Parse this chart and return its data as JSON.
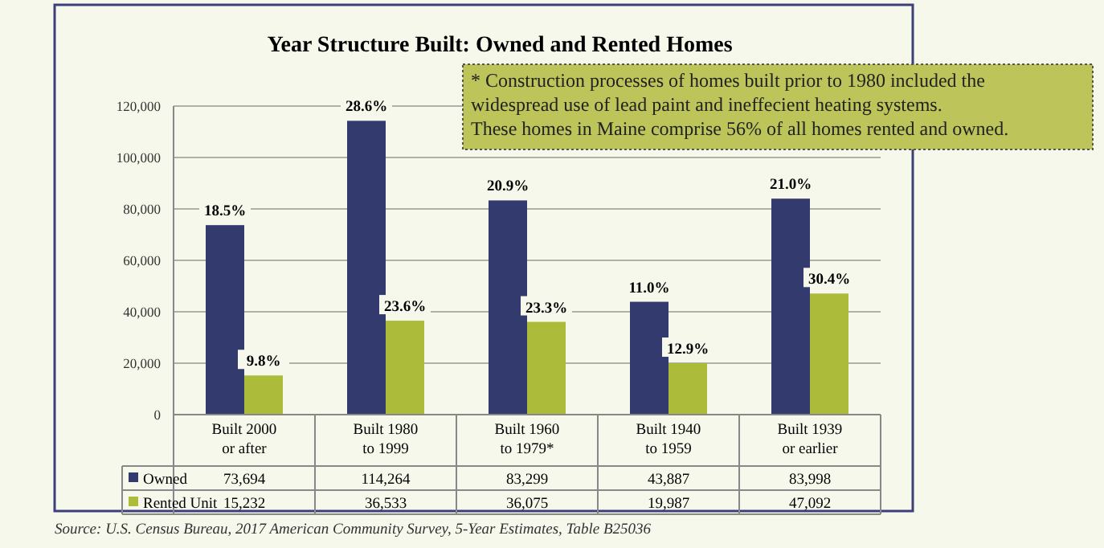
{
  "chart_data": {
    "type": "bar",
    "title": "Year Structure Built: Owned and Rented Homes",
    "categories": [
      "Built 2000 or after",
      "Built 1980 to 1999",
      "Built 1960 to 1979*",
      "Built 1940 to 1959",
      "Built 1939 or earlier"
    ],
    "series": [
      {
        "name": "Owned",
        "color": "#333a6e",
        "values": [
          73694,
          114264,
          83299,
          43887,
          83998
        ],
        "value_labels": [
          "73,694",
          "114,264",
          "83,299",
          "43,887",
          "83,998"
        ]
      },
      {
        "name": "Rented Unit",
        "color": "#adbb3a",
        "values": [
          15232,
          36533,
          36075,
          19987,
          47092
        ],
        "value_labels": [
          "15,232",
          "36,533",
          "36,075",
          "19,987",
          "47,092"
        ]
      }
    ],
    "ylim": [
      0,
      120000
    ],
    "yticks": [
      {
        "value": 0,
        "label": "0"
      },
      {
        "value": 20000,
        "label": "20,000"
      },
      {
        "value": 40000,
        "label": "40,000"
      },
      {
        "value": 60000,
        "label": "60,000"
      },
      {
        "value": 80000,
        "label": "80,000"
      },
      {
        "value": 100000,
        "label": "100,000"
      },
      {
        "value": 120000,
        "label": "120,000"
      }
    ],
    "grid": "y",
    "legend": "bottom left",
    "annotations": [
      {
        "text": "18.5%",
        "x": "Built 2000 or after",
        "y": 73694
      },
      {
        "text": "28.6%",
        "x": "Built 1980 to 1999",
        "y": 114264
      },
      {
        "text": "20.9%",
        "x": "Built 1960 to 1979*",
        "y": 83299
      },
      {
        "text": "11.0%",
        "x": "Built 1940 to 1959",
        "y": 43887
      },
      {
        "text": "21.0%",
        "x": "Built 1939 or earlier",
        "y": 83998
      },
      {
        "text": "9.8%",
        "x": "Built 2000 or after",
        "y": 15232
      },
      {
        "text": "23.6%",
        "x": "Built 1980 to 1999",
        "y": 36533
      },
      {
        "text": "23.3%",
        "x": "Built 1960 to 1979*",
        "y": 36075
      },
      {
        "text": "12.9%",
        "x": "Built 1940 to 1959",
        "y": 19987
      },
      {
        "text": "30.4%",
        "x": "Built 1939 or earlier",
        "y": 47092
      },
      "* Construction processes of homes built prior to 1980 included the widespread use of lead paint and ineffecient heating systems. These homes in Maine comprise 56% of all homes rented and owned.",
      "Source: U.S. Census Bureau, 2017 American Community Survey, 5-Year Estimates, Table B25036"
    ]
  }
}
